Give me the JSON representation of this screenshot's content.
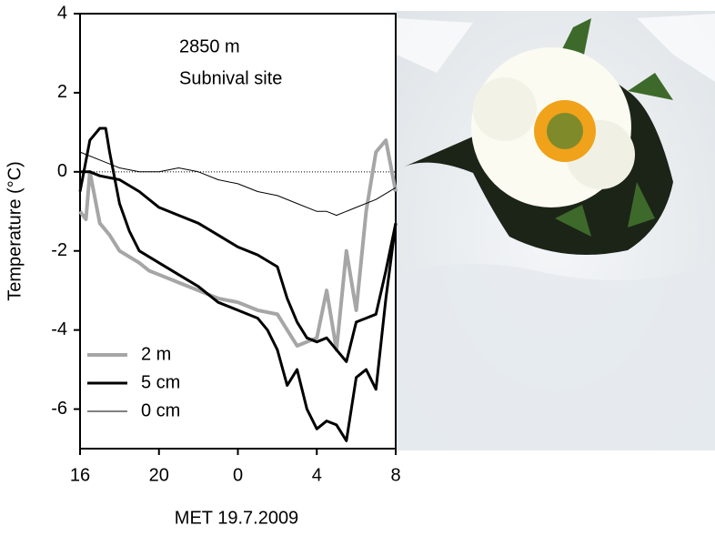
{
  "chart_data": {
    "type": "line",
    "annotations": [
      "2850 m",
      "Subnival site"
    ],
    "xlabel": "MET 19.7.2009",
    "ylabel": "Temperature (°C)",
    "xlim": [
      0,
      16
    ],
    "xticks": [
      {
        "value": 0,
        "label": "16"
      },
      {
        "value": 4,
        "label": "20"
      },
      {
        "value": 8,
        "label": "0"
      },
      {
        "value": 12,
        "label": "4"
      },
      {
        "value": 16,
        "label": "8"
      }
    ],
    "ylim": [
      -7,
      4
    ],
    "yticks": [
      -6,
      -4,
      -2,
      0,
      2,
      4
    ],
    "zero_line": true,
    "legend": "lower left",
    "series": [
      {
        "name": "2 m",
        "color": "#a6a6a6",
        "width": 4,
        "x": [
          0,
          0.3,
          0.5,
          1,
          1.5,
          2,
          3,
          3.5,
          4,
          5,
          6,
          7,
          8,
          9,
          10,
          10.5,
          11,
          11.5,
          12,
          12.5,
          13,
          13.5,
          14,
          14.5,
          15,
          15.5,
          16
        ],
        "values": [
          -1,
          -1.2,
          0,
          -1.3,
          -1.6,
          -2,
          -2.3,
          -2.5,
          -2.6,
          -2.8,
          -3,
          -3.2,
          -3.3,
          -3.5,
          -3.6,
          -4,
          -4.4,
          -4.3,
          -4.2,
          -3,
          -4.5,
          -2,
          -3.5,
          -1,
          0.5,
          0.8,
          -0.5
        ]
      },
      {
        "name": "5 cm",
        "color": "#000000",
        "width": 3,
        "x": [
          0,
          0.5,
          1,
          2,
          3,
          4,
          5,
          6,
          7,
          8,
          9,
          10,
          10.5,
          11,
          11.5,
          12,
          12.5,
          13,
          13.5,
          14,
          14.5,
          15,
          15.5,
          16
        ],
        "values": [
          0,
          0,
          -0.1,
          -0.2,
          -0.5,
          -0.9,
          -1.1,
          -1.3,
          -1.6,
          -1.9,
          -2.1,
          -2.4,
          -3.2,
          -3.8,
          -4.2,
          -4.3,
          -4.2,
          -4.5,
          -4.8,
          -3.8,
          -3.7,
          -3.6,
          -2.5,
          -1.3
        ]
      },
      {
        "color": "#000000",
        "width": 3,
        "x": [
          0,
          0.5,
          1,
          1.3,
          1.5,
          2,
          2.5,
          3,
          4,
          5,
          6,
          7,
          8,
          9,
          9.5,
          10,
          10.5,
          11,
          11.5,
          12,
          12.5,
          13,
          13.5,
          14,
          14.5,
          15,
          15.5,
          16
        ],
        "values": [
          -0.5,
          0.8,
          1.1,
          1.1,
          0.5,
          -0.8,
          -1.5,
          -2,
          -2.3,
          -2.6,
          -2.9,
          -3.3,
          -3.5,
          -3.7,
          -4,
          -4.5,
          -5.4,
          -5,
          -6,
          -6.5,
          -6.3,
          -6.4,
          -6.8,
          -5.2,
          -5,
          -5.5,
          -3.2,
          -1.3
        ]
      },
      {
        "name": "0 cm",
        "color": "#000000",
        "width": 1,
        "x": [
          0,
          1,
          2,
          3,
          4,
          5,
          6,
          7,
          8,
          9,
          10,
          11,
          12,
          12.5,
          13,
          14,
          15,
          16
        ],
        "values": [
          0.5,
          0.3,
          0.1,
          0,
          0,
          0.1,
          0,
          -0.2,
          -0.3,
          -0.5,
          -0.6,
          -0.8,
          -1,
          -1,
          -1.1,
          -0.9,
          -0.7,
          -0.4
        ]
      }
    ]
  }
}
